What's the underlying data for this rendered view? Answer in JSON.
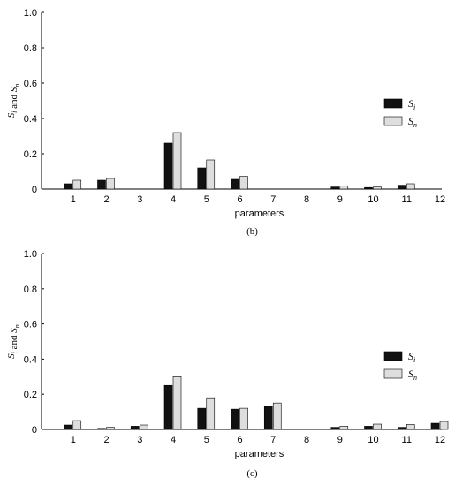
{
  "colors": {
    "si": "#111111",
    "sn": "#dedede",
    "axis": "#000000"
  },
  "chart_data": [
    {
      "type": "bar",
      "panel_label": "(b)",
      "xlabel": "parameters",
      "ylabel": "Si and Sn",
      "ylim": [
        0,
        1.0
      ],
      "yticks": [
        "0",
        "0.2",
        "0.4",
        "0.6",
        "0.8",
        "1.0"
      ],
      "categories": [
        "1",
        "2",
        "3",
        "4",
        "5",
        "6",
        "7",
        "8",
        "9",
        "10",
        "11",
        "12"
      ],
      "legend_position": "right",
      "series": [
        {
          "name": "Si",
          "values": [
            0.03,
            0.05,
            0,
            0.26,
            0.12,
            0.055,
            0,
            0,
            0.012,
            0.009,
            0.022,
            0
          ]
        },
        {
          "name": "Sn",
          "values": [
            0.05,
            0.06,
            0,
            0.32,
            0.165,
            0.072,
            0,
            0,
            0.018,
            0.012,
            0.03,
            0
          ]
        }
      ]
    },
    {
      "type": "bar",
      "panel_label": "(c)",
      "xlabel": "parameters",
      "ylabel": "Si and Sn",
      "ylim": [
        0,
        1.0
      ],
      "yticks": [
        "0",
        "0.2",
        "0.4",
        "0.6",
        "0.8",
        "1.0"
      ],
      "categories": [
        "1",
        "2",
        "3",
        "4",
        "5",
        "6",
        "7",
        "8",
        "9",
        "10",
        "11",
        "12"
      ],
      "legend_position": "right",
      "series": [
        {
          "name": "Si",
          "values": [
            0.025,
            0.006,
            0.018,
            0.25,
            0.12,
            0.115,
            0.13,
            0,
            0.012,
            0.018,
            0.012,
            0.035
          ]
        },
        {
          "name": "Sn",
          "values": [
            0.05,
            0.012,
            0.025,
            0.3,
            0.18,
            0.12,
            0.15,
            0,
            0.018,
            0.03,
            0.028,
            0.045
          ]
        }
      ]
    }
  ]
}
